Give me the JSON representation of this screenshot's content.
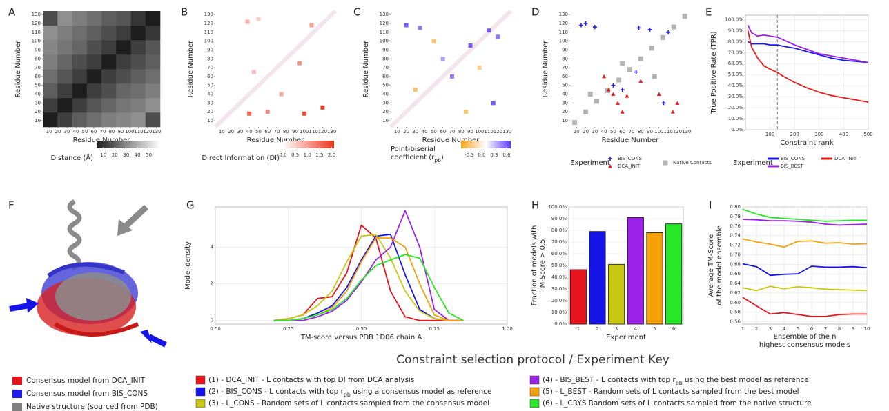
{
  "chart_data": [
    {
      "type": "heatmap",
      "label": "A",
      "xlabel": "Residue Number",
      "ylabel": "Residue Number",
      "xlim": [
        3,
        134
      ],
      "ylim": [
        3,
        134
      ],
      "xticks": [
        10,
        20,
        30,
        40,
        50,
        60,
        70,
        80,
        90,
        100,
        110,
        120,
        130
      ],
      "yticks": [
        10,
        20,
        30,
        40,
        50,
        60,
        70,
        80,
        90,
        100,
        110,
        120,
        130
      ],
      "z": [
        [
          4,
          12,
          20,
          24,
          28,
          30,
          32,
          16
        ],
        [
          12,
          4,
          12,
          18,
          22,
          26,
          28,
          32
        ],
        [
          20,
          12,
          4,
          12,
          16,
          22,
          24,
          28
        ],
        [
          24,
          18,
          12,
          4,
          12,
          16,
          20,
          24
        ],
        [
          28,
          22,
          16,
          12,
          4,
          12,
          16,
          20
        ],
        [
          30,
          26,
          22,
          16,
          12,
          4,
          12,
          18
        ],
        [
          32,
          28,
          24,
          20,
          16,
          12,
          4,
          10
        ],
        [
          16,
          32,
          28,
          24,
          20,
          18,
          10,
          4
        ]
      ],
      "zlim": [
        4,
        60
      ],
      "colors": [
        "#1e1e1e",
        "#ffffff"
      ],
      "colorbar": {
        "title": "Distance (Å)",
        "ticks": [
          10,
          20,
          30,
          40,
          50
        ]
      }
    },
    {
      "type": "contact",
      "label": "B",
      "xlabel": "Residue Number",
      "ylabel": "Residue Number",
      "xlim": [
        3,
        134
      ],
      "ylim": [
        3,
        134
      ],
      "xticks": [
        10,
        20,
        30,
        40,
        50,
        60,
        70,
        80,
        90,
        100,
        110,
        120,
        130
      ],
      "yticks": [
        10,
        20,
        30,
        40,
        50,
        60,
        70,
        80,
        90,
        100,
        110,
        120,
        130
      ],
      "x": [
        38,
        50,
        108,
        40,
        60,
        100,
        120,
        75,
        45,
        95
      ],
      "y": [
        122,
        125,
        118,
        18,
        20,
        18,
        25,
        40,
        65,
        75
      ],
      "values": [
        0.8,
        0.5,
        1.0,
        1.6,
        1.2,
        1.8,
        2.0,
        0.9,
        0.7,
        1.1
      ],
      "zlim": [
        0,
        2.1
      ],
      "colors": [
        "#ffffff",
        "#e8341c"
      ],
      "colorbar": {
        "title": "Direct Information (DI)",
        "ticks": [
          {
            "value": 0,
            "label": "0.0"
          },
          {
            "value": 0.5,
            "label": "0.5"
          },
          {
            "value": 1,
            "label": "1.0"
          },
          {
            "value": 1.5,
            "label": "1.5"
          },
          {
            "value": 2,
            "label": "2.0"
          }
        ]
      }
    },
    {
      "type": "contact",
      "label": "C",
      "xlabel": "Residue Number",
      "ylabel": "Residue Number",
      "xlim": [
        3,
        134
      ],
      "ylim": [
        3,
        134
      ],
      "xticks": [
        10,
        20,
        30,
        40,
        50,
        60,
        70,
        80,
        90,
        100,
        110,
        120,
        130
      ],
      "yticks": [
        10,
        20,
        30,
        40,
        50,
        60,
        70,
        80,
        90,
        100,
        110,
        120,
        130
      ],
      "x": [
        20,
        35,
        90,
        110,
        120,
        60,
        115,
        70,
        30,
        50,
        85,
        100
      ],
      "y": [
        118,
        115,
        95,
        112,
        105,
        80,
        30,
        60,
        45,
        100,
        20,
        70
      ],
      "values": [
        0.6,
        0.5,
        0.6,
        0.6,
        0.5,
        0.4,
        0.6,
        0.5,
        -0.3,
        -0.3,
        -0.3,
        -0.2
      ],
      "zlim": [
        -0.5,
        0.7
      ],
      "colors": [
        "#f5a623",
        "#ffffff",
        "#5b3bf0"
      ],
      "colorbar": {
        "title": [
          "Point-biserial",
          [
            "coefficient   (r",
            "pb",
            ")"
          ]
        ],
        "ticks": [
          {
            "value": -0.3,
            "label": "-0.3"
          },
          {
            "value": 0,
            "label": "0.0"
          },
          {
            "value": 0.3,
            "label": "0.3"
          },
          {
            "value": 0.6,
            "label": "0.6"
          }
        ]
      }
    },
    {
      "type": "scatter",
      "label": "D",
      "xlabel": "Residue Number",
      "ylabel": "Residue Number",
      "xlim": [
        3,
        134
      ],
      "ylim": [
        3,
        134
      ],
      "xticks": [
        10,
        20,
        30,
        40,
        50,
        60,
        70,
        80,
        90,
        100,
        110,
        120,
        130
      ],
      "yticks": [
        10,
        20,
        30,
        40,
        50,
        60,
        70,
        80,
        90,
        100,
        110,
        120,
        130
      ],
      "legend_title": "Experiment",
      "series": [
        {
          "name": "BIS_CONS",
          "color": "#2020e8",
          "marker": "plus",
          "x": [
            15,
            20,
            30,
            78,
            90,
            110,
            50,
            60,
            75,
            105
          ],
          "y": [
            118,
            120,
            116,
            115,
            113,
            110,
            50,
            45,
            65,
            30
          ]
        },
        {
          "name": "DCA_INIT",
          "color": "#e82020",
          "marker": "triangle",
          "x": [
            45,
            50,
            55,
            65,
            40,
            80,
            100,
            120,
            115,
            60
          ],
          "y": [
            45,
            40,
            30,
            38,
            60,
            55,
            40,
            30,
            20,
            20
          ]
        },
        {
          "name": "Native Contacts",
          "color": "#b4b4b4",
          "marker": "square",
          "x": [
            8,
            20,
            32,
            44,
            56,
            68,
            80,
            92,
            104,
            116,
            128,
            25,
            60,
            95
          ],
          "y": [
            8,
            20,
            32,
            44,
            56,
            68,
            80,
            92,
            104,
            116,
            128,
            40,
            75,
            60
          ]
        }
      ]
    },
    {
      "type": "line",
      "label": "E",
      "xlabel": "Constraint rank",
      "ylabel": "True Positive Rate (TPR)",
      "xlim": [
        0,
        500
      ],
      "ylim": [
        0,
        104
      ],
      "grid": true,
      "xticks": [
        100,
        200,
        300,
        400,
        500
      ],
      "yticks": [
        {
          "value": 0,
          "label": "0.0%"
        },
        {
          "value": 10,
          "label": "10.0%"
        },
        {
          "value": 20,
          "label": "20.0%"
        },
        {
          "value": 30,
          "label": "30.0%"
        },
        {
          "value": 40,
          "label": "40.0%"
        },
        {
          "value": 50,
          "label": "50.0%"
        },
        {
          "value": 60,
          "label": "60.0%"
        },
        {
          "value": 70,
          "label": "70.0%"
        },
        {
          "value": 80,
          "label": "80.0%"
        },
        {
          "value": 90,
          "label": "90.0%"
        },
        {
          "value": 100,
          "label": "100.0%"
        }
      ],
      "vline": 130,
      "legend_title": "Experiment",
      "x": [
        10,
        25,
        50,
        75,
        100,
        130,
        150,
        200,
        250,
        300,
        350,
        400,
        450,
        500
      ],
      "series": [
        {
          "name": "BIS_CONS",
          "color": "#1a1ae8",
          "values": [
            80,
            78,
            78,
            78,
            77,
            77,
            76,
            74,
            71,
            68,
            65,
            63,
            62,
            61
          ]
        },
        {
          "name": "BIS_BEST",
          "color": "#9b22e6",
          "values": [
            95,
            88,
            85,
            86,
            85,
            84,
            82,
            77,
            73,
            69,
            67,
            65,
            63,
            61
          ]
        },
        {
          "name": "DCA_INIT",
          "color": "#e81a1a",
          "values": [
            90,
            75,
            65,
            58,
            55,
            52,
            49,
            43,
            38,
            34,
            31,
            29,
            27,
            25
          ]
        }
      ]
    },
    {
      "type": "line",
      "label": "G",
      "xlabel": "TM-score versus PDB 1D06 chain A",
      "ylabel": "Model density",
      "xlim": [
        0,
        1
      ],
      "ylim": [
        -0.2,
        6.2
      ],
      "grid": true,
      "xticks": [
        {
          "value": 0,
          "label": "0.00"
        },
        {
          "value": 0.25,
          "label": "0.25"
        },
        {
          "value": 0.5,
          "label": "0.50"
        },
        {
          "value": 0.75,
          "label": "0.75"
        },
        {
          "value": 1,
          "label": "1.00"
        }
      ],
      "yticks": [
        0,
        2,
        4
      ],
      "x": [
        0.2,
        0.25,
        0.3,
        0.35,
        0.4,
        0.45,
        0.5,
        0.55,
        0.6,
        0.65,
        0.7,
        0.75,
        0.8,
        0.85
      ],
      "series": [
        {
          "color": "#e8141c",
          "values": [
            0,
            0.1,
            0.3,
            1.2,
            1.3,
            2.6,
            5.2,
            4.5,
            1.6,
            0.2,
            0,
            0,
            0,
            0
          ]
        },
        {
          "color": "#1414e8",
          "values": [
            0,
            0,
            0.1,
            0.4,
            0.8,
            1.8,
            3.3,
            4.6,
            4.7,
            2.5,
            0.6,
            0.1,
            0,
            0
          ]
        },
        {
          "color": "#c8c814",
          "values": [
            0,
            0.1,
            0.3,
            0.8,
            1.6,
            3.2,
            4.6,
            4.7,
            3.4,
            1.6,
            0.5,
            0.1,
            0,
            0
          ]
        },
        {
          "color": "#9b22e6",
          "values": [
            0,
            0,
            0,
            0.2,
            0.5,
            1.1,
            2.1,
            3.3,
            4.0,
            6.0,
            4.0,
            0.6,
            0,
            0
          ]
        },
        {
          "color": "#f5a10a",
          "values": [
            0,
            0,
            0.1,
            0.3,
            0.7,
            1.6,
            3.2,
            4.5,
            4.5,
            4.0,
            2.0,
            0.3,
            0,
            0
          ]
        },
        {
          "color": "#28e628",
          "values": [
            0,
            0,
            0.1,
            0.3,
            0.6,
            1.2,
            2.2,
            3.0,
            3.3,
            3.6,
            3.4,
            1.8,
            0.4,
            0
          ]
        }
      ]
    },
    {
      "type": "bar",
      "label": "H",
      "xlabel": "Experiment",
      "ylabel": [
        "Fraction of models with",
        "TM-Score > 0.5"
      ],
      "ylim": [
        0,
        100
      ],
      "grid": true,
      "categories": [
        "1",
        "2",
        "3",
        "4",
        "5",
        "6"
      ],
      "values": [
        46.5,
        79,
        51,
        91,
        78,
        85.5
      ],
      "colors": [
        "#e8141c",
        "#1414e8",
        "#c8c814",
        "#9b22e6",
        "#f5a10a",
        "#28e628"
      ],
      "yticks": [
        {
          "value": 0,
          "label": "0.0%"
        },
        {
          "value": 10,
          "label": "10.0%"
        },
        {
          "value": 20,
          "label": "20.0%"
        },
        {
          "value": 30,
          "label": "30.0%"
        },
        {
          "value": 40,
          "label": "40.0%"
        },
        {
          "value": 50,
          "label": "50.0%"
        },
        {
          "value": 60,
          "label": "60.0%"
        },
        {
          "value": 70,
          "label": "70.0%"
        },
        {
          "value": 80,
          "label": "80.0%"
        },
        {
          "value": 90,
          "label": "90.0%"
        },
        {
          "value": 100,
          "label": "100.0%"
        }
      ]
    },
    {
      "type": "line",
      "label": "I",
      "xlabel": [
        "Ensemble of the n",
        "highest consensus models"
      ],
      "ylabel": [
        "Average TM-Score",
        "of the model ensemble"
      ],
      "xlim": [
        1,
        10
      ],
      "ylim": [
        0.555,
        0.8
      ],
      "grid": true,
      "xticks": [
        1,
        2,
        3,
        4,
        5,
        6,
        7,
        8,
        9,
        10
      ],
      "yticks": [
        0.56,
        0.58,
        {
          "value": 0.6,
          "label": "0.60"
        },
        0.62,
        0.64,
        0.66,
        0.68,
        {
          "value": 0.7,
          "label": "0.70"
        },
        0.72,
        0.74,
        0.76,
        0.78,
        {
          "value": 0.8,
          "label": "0.80"
        }
      ],
      "x": [
        1,
        2,
        3,
        4,
        5,
        6,
        7,
        8,
        9,
        10
      ],
      "series": [
        {
          "color": "#28e628",
          "values": [
            0.795,
            0.785,
            0.778,
            0.776,
            0.774,
            0.772,
            0.77,
            0.771,
            0.772,
            0.772
          ]
        },
        {
          "color": "#9b22e6",
          "values": [
            0.774,
            0.773,
            0.771,
            0.771,
            0.77,
            0.768,
            0.764,
            0.762,
            0.763,
            0.764
          ]
        },
        {
          "color": "#f5a10a",
          "values": [
            0.733,
            0.727,
            0.722,
            0.716,
            0.728,
            0.729,
            0.724,
            0.725,
            0.722,
            0.723
          ]
        },
        {
          "color": "#1414e8",
          "values": [
            0.681,
            0.675,
            0.657,
            0.659,
            0.66,
            0.676,
            0.674,
            0.674,
            0.675,
            0.673
          ]
        },
        {
          "color": "#c8c814",
          "values": [
            0.631,
            0.625,
            0.634,
            0.629,
            0.633,
            0.631,
            0.628,
            0.627,
            0.626,
            0.625
          ]
        },
        {
          "color": "#e8141c",
          "values": [
            0.611,
            0.593,
            0.576,
            0.579,
            0.575,
            0.571,
            0.571,
            0.575,
            0.576,
            0.576
          ]
        }
      ]
    }
  ],
  "figure_f": {
    "label": "F",
    "legend": [
      {
        "label": "Consensus model from DCA_INIT",
        "color": "#e8141c"
      },
      {
        "label": "Consensus model from BIS_CONS",
        "color": "#1e1ee8"
      },
      {
        "label": "Native structure (sourced from PDB)",
        "color": "#808080"
      }
    ]
  },
  "key": {
    "title": "Constraint selection protocol / Experiment Key",
    "items": [
      {
        "text": "(1) - DCA_INIT - L contacts with top DI from DCA analysis",
        "color": "#e8141c"
      },
      {
        "text": [
          [
            "(2) - BIS_CONS - L contacts with top r",
            "pb",
            " using a consensus model as reference"
          ]
        ],
        "color": "#1414e8"
      },
      {
        "text": "(3) - L_CONS - Random sets of L contacts sampled from the consensus model",
        "color": "#c8c814"
      },
      {
        "text": [
          [
            "(4) - BIS_BEST - L contacts with top r",
            "pb",
            " using the best model as reference"
          ]
        ],
        "color": "#9b22e6"
      },
      {
        "text": "(5) - L_BEST - Random sets of L contacts sampled from the best model",
        "color": "#f5a10a"
      },
      {
        "text": "(6) - L_CRYS Random sets of L contacts sampled from the native structure",
        "color": "#28e628"
      }
    ]
  }
}
